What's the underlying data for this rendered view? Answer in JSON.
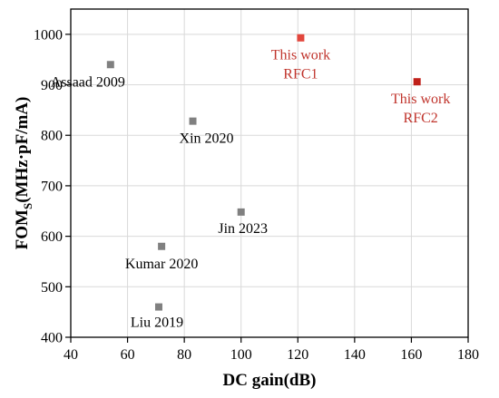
{
  "chart_data": {
    "type": "scatter",
    "title": "",
    "xlabel": "DC gain(dB)",
    "ylabel_main": "FOM",
    "ylabel_sub": "S",
    "ylabel_rest": "(MHz·pF/mA)",
    "xlim": [
      40,
      180
    ],
    "ylim": [
      400,
      1050
    ],
    "xticks": [
      40,
      60,
      80,
      100,
      120,
      140,
      160,
      180
    ],
    "yticks": [
      400,
      500,
      600,
      700,
      800,
      900,
      1000
    ],
    "grid": true,
    "legend": "none",
    "points": [
      {
        "x": 54,
        "y": 940,
        "label": [
          "Assaad 2009"
        ],
        "color": "#808080",
        "text_color": "#000000"
      },
      {
        "x": 83,
        "y": 828,
        "label": [
          "Xin 2020"
        ],
        "color": "#808080",
        "text_color": "#000000"
      },
      {
        "x": 100,
        "y": 648,
        "label": [
          "Jin 2023"
        ],
        "color": "#808080",
        "text_color": "#000000"
      },
      {
        "x": 72,
        "y": 580,
        "label": [
          "Kumar 2020"
        ],
        "color": "#808080",
        "text_color": "#000000"
      },
      {
        "x": 71,
        "y": 460,
        "label": [
          "Liu 2019"
        ],
        "color": "#808080",
        "text_color": "#000000"
      },
      {
        "x": 121,
        "y": 993,
        "label": [
          "This work",
          "RFC1"
        ],
        "color": "#e2463c",
        "text_color": "#c0342c"
      },
      {
        "x": 162,
        "y": 906,
        "label": [
          "This work",
          "RFC2"
        ],
        "color": "#c0201a",
        "text_color": "#c0342c"
      }
    ]
  }
}
